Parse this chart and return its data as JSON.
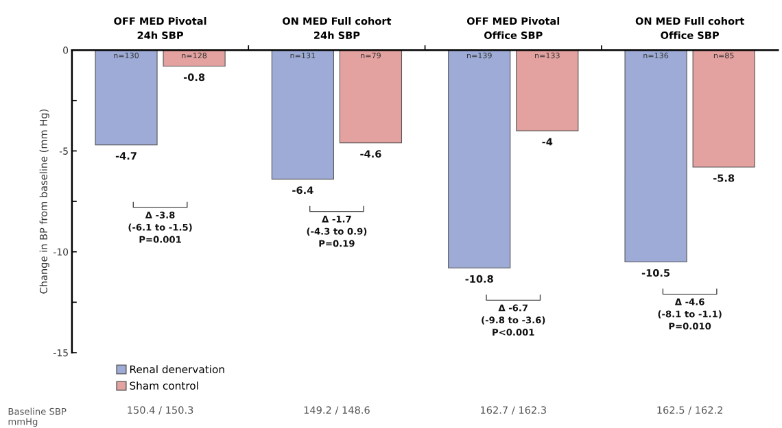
{
  "chart_data": {
    "type": "bar",
    "categories": [
      "OFF MED Pivotal\n24h SBP",
      "ON MED Full cohort\n24h SBP",
      "OFF MED Pivotal\nOffice SBP",
      "ON MED Full cohort\nOffice SBP"
    ],
    "series": [
      {
        "name": "Renal denervation",
        "color": "#9dabd6",
        "values": [
          -4.7,
          -6.4,
          -10.8,
          -10.5
        ]
      },
      {
        "name": "Sham control",
        "color": "#e3a19f",
        "values": [
          -0.8,
          -4.6,
          -4,
          -5.8
        ]
      }
    ],
    "ylabel": "Change in BP from baseline (mm Hg)",
    "ylim": [
      -15,
      0
    ],
    "yticks": [
      0,
      {
        "value": -2.5,
        "label": null
      },
      -5,
      {
        "value": -7.5,
        "label": null
      },
      -10,
      {
        "value": -12.5,
        "label": null
      },
      -15
    ],
    "data_labels": true,
    "legend": "bottom left",
    "grid": false,
    "annotations": [
      "n=130",
      "n=128",
      "n=131",
      "n=79",
      "n=139",
      "n=133",
      "n=136",
      "n=85",
      "Δ -3.8\n(-6.1 to -1.5)\nP=0.001",
      "Δ -1.7\n(-4.3 to 0.9)\nP=0.19",
      "Δ -6.7\n(-9.8 to -3.6)\nP<0.001",
      "Δ -4.6\n(-8.1 to -1.1)\nP=0.010",
      "Baseline SBP\nmmHg",
      "150.4 / 150.3",
      "149.2 / 148.6",
      "162.7 / 162.3",
      "162.5 / 162.2"
    ]
  }
}
